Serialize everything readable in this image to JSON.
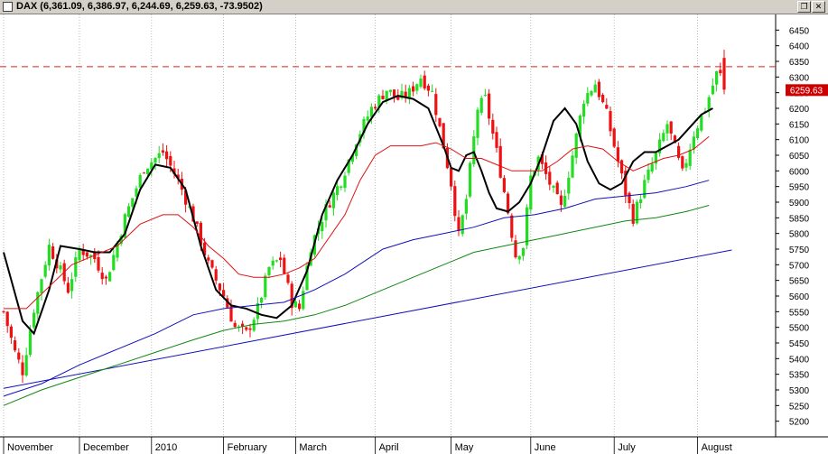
{
  "window": {
    "title": "DAX (6,361.09, 6,386.97, 6,244.69, 6,259.63, -73.9502)",
    "restore_icon": "restore-icon",
    "close_icon": "close-icon"
  },
  "colors": {
    "background": "#ffffff",
    "grid": "#aaaaaa",
    "up": "#22dd22",
    "down": "#ee1111",
    "ma_short": "#000000",
    "ma_medium": "#dd1111",
    "ma_long": "#1111bb",
    "ma_longer": "#118811",
    "trendline": "#1111bb",
    "resistance": "#dd2222",
    "price_label_bg": "#cc0000"
  },
  "chart_data": {
    "type": "candlestick",
    "title": "DAX",
    "xlabel": "",
    "ylabel": "",
    "ylim": [
      5150,
      6500
    ],
    "y_ticks": [
      5200,
      5250,
      5300,
      5350,
      5400,
      5450,
      5500,
      5550,
      5600,
      5650,
      5700,
      5750,
      5800,
      5850,
      5900,
      5950,
      6000,
      6050,
      6100,
      6150,
      6200,
      6250,
      6300,
      6350,
      6400,
      6450
    ],
    "x_labels": [
      "November",
      "December",
      "2010",
      "February",
      "March",
      "April",
      "May",
      "June",
      "July",
      "August"
    ],
    "x_label_sessions": [
      0,
      20,
      39,
      58,
      77,
      98,
      118,
      139,
      161,
      183
    ],
    "grid": true,
    "last_price_label": "6259.63",
    "resistance_level": 6333,
    "trendline": {
      "from": {
        "session": 0,
        "value": 5305
      },
      "to": {
        "session": 192,
        "value": 5747
      }
    },
    "sessions": 191,
    "anchors": [
      {
        "session": 0,
        "close": 5550
      },
      {
        "session": 3,
        "close": 5420
      },
      {
        "session": 5,
        "close": 5360
      },
      {
        "session": 8,
        "close": 5560
      },
      {
        "session": 12,
        "close": 5760
      },
      {
        "session": 15,
        "close": 5680
      },
      {
        "session": 17,
        "close": 5620
      },
      {
        "session": 20,
        "close": 5750
      },
      {
        "session": 24,
        "close": 5720
      },
      {
        "session": 27,
        "close": 5650
      },
      {
        "session": 32,
        "close": 5850
      },
      {
        "session": 37,
        "close": 6010
      },
      {
        "session": 42,
        "close": 6060
      },
      {
        "session": 46,
        "close": 5970
      },
      {
        "session": 50,
        "close": 5850
      },
      {
        "session": 54,
        "close": 5700
      },
      {
        "session": 58,
        "close": 5600
      },
      {
        "session": 61,
        "close": 5500
      },
      {
        "session": 64,
        "close": 5480
      },
      {
        "session": 67,
        "close": 5560
      },
      {
        "session": 70,
        "close": 5690
      },
      {
        "session": 73,
        "close": 5720
      },
      {
        "session": 76,
        "close": 5580
      },
      {
        "session": 78,
        "close": 5560
      },
      {
        "session": 81,
        "close": 5760
      },
      {
        "session": 85,
        "close": 5880
      },
      {
        "session": 89,
        "close": 5970
      },
      {
        "session": 93,
        "close": 6100
      },
      {
        "session": 97,
        "close": 6200
      },
      {
        "session": 101,
        "close": 6260
      },
      {
        "session": 104,
        "close": 6230
      },
      {
        "session": 107,
        "close": 6250
      },
      {
        "session": 110,
        "close": 6300
      },
      {
        "session": 113,
        "close": 6250
      },
      {
        "session": 116,
        "close": 6080
      },
      {
        "session": 118,
        "close": 5960
      },
      {
        "session": 120,
        "close": 5790
      },
      {
        "session": 122,
        "close": 5910
      },
      {
        "session": 125,
        "close": 6200
      },
      {
        "session": 127,
        "close": 6230
      },
      {
        "session": 130,
        "close": 6060
      },
      {
        "session": 133,
        "close": 5870
      },
      {
        "session": 135,
        "close": 5730
      },
      {
        "session": 137,
        "close": 5760
      },
      {
        "session": 139,
        "close": 5980
      },
      {
        "session": 141,
        "close": 6040
      },
      {
        "session": 144,
        "close": 5960
      },
      {
        "session": 147,
        "close": 5880
      },
      {
        "session": 150,
        "close": 6050
      },
      {
        "session": 153,
        "close": 6230
      },
      {
        "session": 156,
        "close": 6280
      },
      {
        "session": 159,
        "close": 6180
      },
      {
        "session": 162,
        "close": 6030
      },
      {
        "session": 164,
        "close": 5930
      },
      {
        "session": 166,
        "close": 5850
      },
      {
        "session": 169,
        "close": 5960
      },
      {
        "session": 172,
        "close": 6050
      },
      {
        "session": 175,
        "close": 6150
      },
      {
        "session": 177,
        "close": 6070
      },
      {
        "session": 179,
        "close": 5990
      },
      {
        "session": 182,
        "close": 6120
      },
      {
        "session": 185,
        "close": 6200
      },
      {
        "session": 188,
        "close": 6310
      },
      {
        "session": 190,
        "close": 6300
      }
    ],
    "last_bar": {
      "open": 6361.09,
      "high": 6386.97,
      "low": 6244.69,
      "close": 6259.63
    },
    "indicators": [
      {
        "name": "",
        "color": "#000000",
        "points": [
          [
            0,
            5740
          ],
          [
            5,
            5520
          ],
          [
            8,
            5480
          ],
          [
            12,
            5620
          ],
          [
            15,
            5760
          ],
          [
            20,
            5750
          ],
          [
            24,
            5740
          ],
          [
            28,
            5740
          ],
          [
            32,
            5800
          ],
          [
            36,
            5940
          ],
          [
            40,
            6020
          ],
          [
            44,
            6010
          ],
          [
            48,
            5940
          ],
          [
            52,
            5760
          ],
          [
            56,
            5620
          ],
          [
            60,
            5570
          ],
          [
            64,
            5560
          ],
          [
            68,
            5540
          ],
          [
            72,
            5530
          ],
          [
            76,
            5570
          ],
          [
            80,
            5680
          ],
          [
            84,
            5860
          ],
          [
            88,
            5970
          ],
          [
            92,
            6050
          ],
          [
            96,
            6150
          ],
          [
            100,
            6220
          ],
          [
            104,
            6240
          ],
          [
            108,
            6230
          ],
          [
            112,
            6200
          ],
          [
            116,
            6080
          ],
          [
            118,
            6010
          ],
          [
            120,
            6000
          ],
          [
            122,
            6050
          ],
          [
            124,
            6060
          ],
          [
            126,
            6000
          ],
          [
            128,
            5930
          ],
          [
            130,
            5880
          ],
          [
            133,
            5870
          ],
          [
            136,
            5900
          ],
          [
            139,
            5960
          ],
          [
            142,
            6050
          ],
          [
            145,
            6160
          ],
          [
            148,
            6200
          ],
          [
            151,
            6150
          ],
          [
            154,
            6030
          ],
          [
            157,
            5960
          ],
          [
            160,
            5940
          ],
          [
            163,
            5960
          ],
          [
            166,
            6030
          ],
          [
            169,
            6060
          ],
          [
            172,
            6060
          ],
          [
            175,
            6080
          ],
          [
            178,
            6100
          ],
          [
            181,
            6140
          ],
          [
            184,
            6180
          ],
          [
            187,
            6200
          ]
        ]
      },
      {
        "name": "",
        "color": "#dd1111",
        "points": [
          [
            0,
            5560
          ],
          [
            6,
            5560
          ],
          [
            12,
            5630
          ],
          [
            18,
            5700
          ],
          [
            24,
            5730
          ],
          [
            30,
            5760
          ],
          [
            36,
            5830
          ],
          [
            42,
            5860
          ],
          [
            46,
            5860
          ],
          [
            50,
            5820
          ],
          [
            54,
            5760
          ],
          [
            58,
            5720
          ],
          [
            62,
            5670
          ],
          [
            66,
            5660
          ],
          [
            70,
            5660
          ],
          [
            74,
            5670
          ],
          [
            78,
            5690
          ],
          [
            82,
            5720
          ],
          [
            86,
            5790
          ],
          [
            90,
            5860
          ],
          [
            94,
            5970
          ],
          [
            98,
            6050
          ],
          [
            102,
            6080
          ],
          [
            106,
            6080
          ],
          [
            110,
            6080
          ],
          [
            114,
            6090
          ],
          [
            118,
            6070
          ],
          [
            122,
            6040
          ],
          [
            126,
            6040
          ],
          [
            130,
            6020
          ],
          [
            134,
            6000
          ],
          [
            138,
            6000
          ],
          [
            142,
            6000
          ],
          [
            146,
            6030
          ],
          [
            150,
            6070
          ],
          [
            154,
            6080
          ],
          [
            158,
            6070
          ],
          [
            162,
            6030
          ],
          [
            166,
            6000
          ],
          [
            170,
            6020
          ],
          [
            174,
            6040
          ],
          [
            178,
            6050
          ],
          [
            182,
            6070
          ],
          [
            186,
            6110
          ]
        ]
      },
      {
        "name": "",
        "color": "#1111bb",
        "points": [
          [
            0,
            5280
          ],
          [
            10,
            5320
          ],
          [
            20,
            5380
          ],
          [
            30,
            5430
          ],
          [
            40,
            5480
          ],
          [
            50,
            5540
          ],
          [
            58,
            5560
          ],
          [
            66,
            5570
          ],
          [
            74,
            5580
          ],
          [
            82,
            5620
          ],
          [
            90,
            5670
          ],
          [
            100,
            5750
          ],
          [
            108,
            5780
          ],
          [
            116,
            5800
          ],
          [
            124,
            5820
          ],
          [
            132,
            5850
          ],
          [
            140,
            5860
          ],
          [
            148,
            5880
          ],
          [
            156,
            5910
          ],
          [
            164,
            5920
          ],
          [
            172,
            5930
          ],
          [
            180,
            5950
          ],
          [
            186,
            5970
          ]
        ]
      },
      {
        "name": "",
        "color": "#118811",
        "points": [
          [
            0,
            5250
          ],
          [
            10,
            5300
          ],
          [
            20,
            5340
          ],
          [
            30,
            5380
          ],
          [
            40,
            5420
          ],
          [
            50,
            5460
          ],
          [
            58,
            5490
          ],
          [
            66,
            5510
          ],
          [
            74,
            5520
          ],
          [
            82,
            5540
          ],
          [
            90,
            5570
          ],
          [
            100,
            5620
          ],
          [
            108,
            5660
          ],
          [
            116,
            5700
          ],
          [
            124,
            5740
          ],
          [
            132,
            5760
          ],
          [
            140,
            5780
          ],
          [
            148,
            5800
          ],
          [
            156,
            5820
          ],
          [
            164,
            5840
          ],
          [
            172,
            5850
          ],
          [
            180,
            5870
          ],
          [
            186,
            5890
          ]
        ]
      }
    ]
  }
}
